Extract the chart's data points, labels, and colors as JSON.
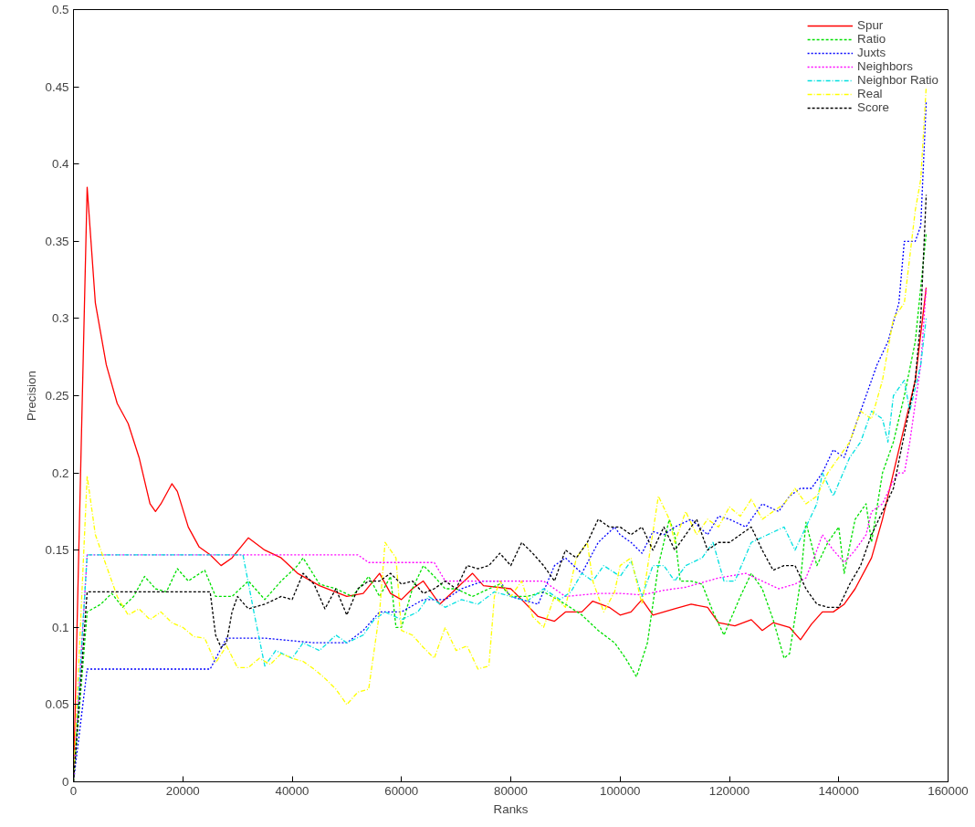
{
  "chart_data": {
    "type": "line",
    "xlabel": "Ranks",
    "ylabel": "Precision",
    "xlim": [
      0,
      160000
    ],
    "ylim": [
      0,
      0.5
    ],
    "xticks": [
      0,
      20000,
      40000,
      60000,
      80000,
      100000,
      120000,
      140000,
      160000
    ],
    "yticks": [
      0,
      0.05,
      0.1,
      0.15,
      0.2,
      0.25,
      0.3,
      0.35,
      0.4,
      0.45,
      0.5
    ],
    "grid": false,
    "legend": "top right",
    "marker": "none",
    "series": [
      {
        "name": "Spur",
        "color": "#ff0000",
        "line_style": "solid",
        "x": [
          0,
          2500,
          4000,
          6000,
          8000,
          10000,
          12000,
          14000,
          15000,
          16000,
          18000,
          19000,
          21000,
          23000,
          25000,
          27000,
          29000,
          32000,
          35000,
          38000,
          41000,
          45000,
          50000,
          53000,
          56000,
          58000,
          60000,
          62000,
          64000,
          67000,
          70000,
          73000,
          75000,
          80000,
          82000,
          85000,
          88000,
          90000,
          93000,
          95000,
          98000,
          100000,
          102000,
          104000,
          106000,
          110000,
          113000,
          116000,
          118000,
          121000,
          124000,
          126000,
          128000,
          131000,
          133000,
          135000,
          137000,
          139000,
          141000,
          143000,
          146000,
          148000,
          150000,
          152000,
          154000,
          156000
        ],
        "values": [
          0,
          0.385,
          0.31,
          0.27,
          0.245,
          0.232,
          0.21,
          0.18,
          0.175,
          0.18,
          0.193,
          0.188,
          0.165,
          0.152,
          0.147,
          0.14,
          0.145,
          0.158,
          0.15,
          0.145,
          0.135,
          0.127,
          0.12,
          0.122,
          0.135,
          0.122,
          0.118,
          0.125,
          0.13,
          0.115,
          0.125,
          0.135,
          0.127,
          0.125,
          0.118,
          0.107,
          0.104,
          0.11,
          0.11,
          0.117,
          0.113,
          0.108,
          0.11,
          0.118,
          0.108,
          0.112,
          0.115,
          0.113,
          0.103,
          0.101,
          0.105,
          0.098,
          0.103,
          0.1,
          0.092,
          0.102,
          0.11,
          0.11,
          0.115,
          0.125,
          0.145,
          0.17,
          0.2,
          0.23,
          0.26,
          0.32
        ]
      },
      {
        "name": "Ratio",
        "color": "#00e000",
        "line_style": "dashed",
        "x": [
          0,
          2500,
          5000,
          7000,
          9000,
          11000,
          13000,
          15000,
          17000,
          19000,
          21000,
          24000,
          26000,
          29000,
          32000,
          35000,
          38000,
          41000,
          42000,
          45000,
          48000,
          51000,
          54000,
          56000,
          58000,
          59000,
          60000,
          62000,
          64000,
          66000,
          68000,
          70000,
          73000,
          76000,
          78000,
          80000,
          83000,
          86000,
          90000,
          93000,
          96000,
          99000,
          101000,
          103000,
          105000,
          107000,
          109000,
          110000,
          111000,
          113000,
          115000,
          117000,
          119000,
          122000,
          124000,
          126000,
          128000,
          130000,
          131000,
          133000,
          134000,
          136000,
          138000,
          140000,
          141000,
          143000,
          145000,
          146000,
          148000,
          150000,
          152000,
          154000,
          155000,
          156000
        ],
        "values": [
          0,
          0.11,
          0.115,
          0.122,
          0.113,
          0.12,
          0.133,
          0.125,
          0.123,
          0.138,
          0.13,
          0.137,
          0.12,
          0.12,
          0.13,
          0.118,
          0.13,
          0.14,
          0.145,
          0.128,
          0.125,
          0.12,
          0.133,
          0.12,
          0.133,
          0.1,
          0.1,
          0.125,
          0.14,
          0.133,
          0.125,
          0.125,
          0.12,
          0.125,
          0.128,
          0.12,
          0.12,
          0.123,
          0.115,
          0.108,
          0.098,
          0.09,
          0.08,
          0.068,
          0.09,
          0.14,
          0.17,
          0.16,
          0.13,
          0.13,
          0.128,
          0.11,
          0.095,
          0.12,
          0.135,
          0.125,
          0.105,
          0.08,
          0.083,
          0.13,
          0.168,
          0.14,
          0.155,
          0.165,
          0.135,
          0.17,
          0.18,
          0.155,
          0.2,
          0.22,
          0.25,
          0.285,
          0.32,
          0.355
        ]
      },
      {
        "name": "Juxts",
        "color": "#0000ff",
        "line_style": "dotted",
        "x": [
          0,
          2500,
          25000,
          28000,
          35000,
          44000,
          50000,
          53000,
          56000,
          60000,
          64000,
          68000,
          71000,
          75000,
          78000,
          80000,
          85000,
          88000,
          90000,
          93000,
          96000,
          99000,
          100000,
          102000,
          104000,
          106000,
          108000,
          110000,
          113000,
          116000,
          118000,
          120000,
          123000,
          126000,
          129000,
          131000,
          133000,
          135000,
          137000,
          139000,
          141000,
          143000,
          145000,
          147000,
          149000,
          151000,
          152000,
          154000,
          155000,
          156000
        ],
        "values": [
          0,
          0.073,
          0.073,
          0.093,
          0.093,
          0.09,
          0.09,
          0.098,
          0.11,
          0.11,
          0.118,
          0.118,
          0.125,
          0.13,
          0.13,
          0.12,
          0.115,
          0.14,
          0.145,
          0.135,
          0.155,
          0.165,
          0.16,
          0.155,
          0.148,
          0.162,
          0.16,
          0.165,
          0.17,
          0.16,
          0.172,
          0.17,
          0.165,
          0.18,
          0.175,
          0.185,
          0.19,
          0.19,
          0.2,
          0.215,
          0.21,
          0.23,
          0.25,
          0.27,
          0.285,
          0.31,
          0.35,
          0.35,
          0.36,
          0.44
        ]
      },
      {
        "name": "Neighbors",
        "color": "#ff00ff",
        "line_style": "dotted",
        "x": [
          0,
          2500,
          52000,
          54000,
          66000,
          68000,
          80000,
          86000,
          90000,
          96000,
          100000,
          104000,
          108000,
          112000,
          118000,
          123000,
          126000,
          129000,
          132000,
          134000,
          136000,
          137000,
          139000,
          141000,
          143000,
          145000,
          146000,
          148000,
          150000,
          151000,
          152000,
          153000,
          155000,
          156000
        ],
        "values": [
          0,
          0.147,
          0.147,
          0.142,
          0.142,
          0.13,
          0.13,
          0.13,
          0.12,
          0.122,
          0.122,
          0.121,
          0.124,
          0.126,
          0.132,
          0.135,
          0.13,
          0.125,
          0.128,
          0.132,
          0.15,
          0.16,
          0.15,
          0.142,
          0.15,
          0.16,
          0.175,
          0.18,
          0.195,
          0.2,
          0.2,
          0.22,
          0.27,
          0.32
        ]
      },
      {
        "name": "Neighbor Ratio",
        "color": "#00e0e0",
        "line_style": "dashdot",
        "x": [
          0,
          2500,
          31000,
          33000,
          35000,
          37000,
          40000,
          42000,
          45000,
          48000,
          50000,
          53000,
          55000,
          57000,
          60000,
          63000,
          65000,
          68000,
          71000,
          74000,
          77000,
          80000,
          83000,
          86000,
          89000,
          91000,
          93000,
          95000,
          97000,
          100000,
          102000,
          104000,
          106000,
          108000,
          110000,
          112000,
          115000,
          117000,
          119000,
          121000,
          124000,
          127000,
          130000,
          132000,
          134000,
          136000,
          137000,
          139000,
          142000,
          144000,
          146000,
          148000,
          149000,
          150000,
          152000,
          153000,
          155000,
          156000
        ],
        "values": [
          0,
          0.147,
          0.147,
          0.11,
          0.075,
          0.085,
          0.08,
          0.09,
          0.085,
          0.095,
          0.09,
          0.095,
          0.105,
          0.11,
          0.105,
          0.11,
          0.12,
          0.113,
          0.118,
          0.115,
          0.123,
          0.12,
          0.117,
          0.125,
          0.118,
          0.123,
          0.135,
          0.13,
          0.14,
          0.133,
          0.143,
          0.12,
          0.14,
          0.14,
          0.13,
          0.14,
          0.145,
          0.155,
          0.13,
          0.13,
          0.155,
          0.16,
          0.165,
          0.15,
          0.165,
          0.18,
          0.2,
          0.185,
          0.21,
          0.22,
          0.24,
          0.235,
          0.22,
          0.25,
          0.26,
          0.24,
          0.27,
          0.3
        ]
      },
      {
        "name": "Real",
        "color": "#ffff00",
        "line_style": "dashdot",
        "x": [
          0,
          2500,
          4000,
          6000,
          8000,
          10000,
          12000,
          14000,
          16000,
          18000,
          20000,
          22000,
          24000,
          26000,
          28000,
          30000,
          32000,
          34000,
          36000,
          38000,
          40000,
          42000,
          44000,
          46000,
          48000,
          50000,
          52000,
          54000,
          56000,
          57000,
          59000,
          60000,
          62000,
          64000,
          66000,
          68000,
          70000,
          72000,
          74000,
          76000,
          77000,
          78000,
          80000,
          82000,
          84000,
          86000,
          88000,
          90000,
          92000,
          94000,
          95000,
          97000,
          99000,
          100000,
          102000,
          104000,
          107000,
          109000,
          110000,
          112000,
          114000,
          116000,
          118000,
          120000,
          122000,
          124000,
          126000,
          128000,
          130000,
          132000,
          134000,
          136000,
          138000,
          140000,
          142000,
          144000,
          146000,
          148000,
          150000,
          152000,
          154000,
          155000,
          156000
        ],
        "values": [
          0,
          0.198,
          0.16,
          0.14,
          0.12,
          0.108,
          0.112,
          0.105,
          0.11,
          0.103,
          0.1,
          0.094,
          0.093,
          0.077,
          0.088,
          0.074,
          0.074,
          0.08,
          0.076,
          0.083,
          0.08,
          0.078,
          0.073,
          0.067,
          0.06,
          0.05,
          0.058,
          0.06,
          0.11,
          0.155,
          0.145,
          0.098,
          0.095,
          0.087,
          0.08,
          0.1,
          0.085,
          0.088,
          0.073,
          0.075,
          0.12,
          0.13,
          0.12,
          0.13,
          0.107,
          0.1,
          0.12,
          0.113,
          0.145,
          0.155,
          0.13,
          0.11,
          0.123,
          0.14,
          0.145,
          0.115,
          0.185,
          0.17,
          0.155,
          0.175,
          0.16,
          0.17,
          0.165,
          0.178,
          0.172,
          0.183,
          0.17,
          0.175,
          0.18,
          0.19,
          0.18,
          0.185,
          0.2,
          0.21,
          0.22,
          0.24,
          0.235,
          0.26,
          0.3,
          0.31,
          0.37,
          0.39,
          0.45
        ]
      },
      {
        "name": "Score",
        "color": "#000000",
        "line_style": "dashed",
        "x": [
          0,
          2500,
          25000,
          26000,
          27000,
          28000,
          29000,
          30000,
          32000,
          35000,
          38000,
          40000,
          42000,
          44000,
          46000,
          48000,
          50000,
          52000,
          54000,
          56000,
          58000,
          60000,
          62000,
          64000,
          66000,
          68000,
          70000,
          72000,
          74000,
          76000,
          78000,
          80000,
          82000,
          84000,
          86000,
          88000,
          90000,
          92000,
          94000,
          96000,
          98000,
          100000,
          102000,
          104000,
          106000,
          108000,
          110000,
          112000,
          114000,
          116000,
          118000,
          120000,
          122000,
          124000,
          126000,
          128000,
          130000,
          132000,
          134000,
          136000,
          138000,
          140000,
          142000,
          144000,
          146000,
          148000,
          150000,
          152000,
          154000,
          155000,
          156000
        ],
        "values": [
          0,
          0.123,
          0.123,
          0.095,
          0.087,
          0.09,
          0.11,
          0.12,
          0.112,
          0.115,
          0.12,
          0.118,
          0.135,
          0.128,
          0.112,
          0.125,
          0.108,
          0.125,
          0.13,
          0.13,
          0.135,
          0.128,
          0.13,
          0.122,
          0.125,
          0.13,
          0.125,
          0.14,
          0.138,
          0.14,
          0.148,
          0.14,
          0.155,
          0.148,
          0.14,
          0.13,
          0.15,
          0.145,
          0.155,
          0.17,
          0.165,
          0.165,
          0.16,
          0.165,
          0.15,
          0.165,
          0.15,
          0.16,
          0.17,
          0.15,
          0.155,
          0.155,
          0.16,
          0.165,
          0.15,
          0.137,
          0.14,
          0.14,
          0.125,
          0.115,
          0.113,
          0.113,
          0.128,
          0.14,
          0.16,
          0.175,
          0.19,
          0.225,
          0.26,
          0.3,
          0.38
        ]
      }
    ]
  }
}
